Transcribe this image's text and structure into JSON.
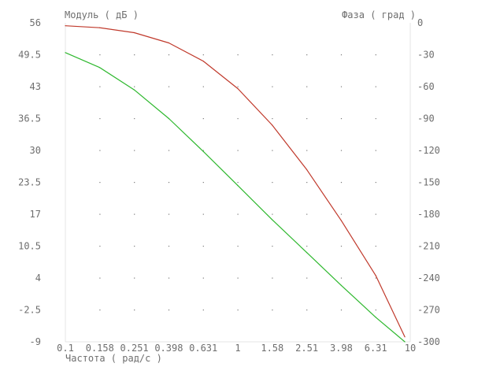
{
  "chart_data": {
    "type": "line",
    "title": "",
    "xlabel": "Частота ( рад/с )",
    "ylabel_left": "Модуль ( дБ )",
    "ylabel_right": "Фаза ( град )",
    "x_scale": "log",
    "xlim": [
      0.1,
      10
    ],
    "ylim_left": [
      -9,
      56
    ],
    "ylim_right": [
      -300,
      0
    ],
    "grid": "dotted",
    "x_ticks": [
      "0.1",
      "0.158",
      "0.251",
      "0.398",
      "0.631",
      "1",
      "1.58",
      "2.51",
      "3.98",
      "6.31",
      "10"
    ],
    "y_ticks_left": [
      "56",
      "49.5",
      "43",
      "36.5",
      "30",
      "23.5",
      "17",
      "10.5",
      "4",
      "-2.5",
      "-9"
    ],
    "y_ticks_right": [
      "0",
      "-30",
      "-60",
      "-90",
      "-120",
      "-150",
      "-180",
      "-210",
      "-240",
      "-270",
      "-300"
    ],
    "series": [
      {
        "axis": "left",
        "color": "#c0392b",
        "x": [
          0.1,
          0.158,
          0.251,
          0.398,
          0.631,
          1,
          1.58,
          2.51,
          3.98,
          6.31,
          9.3
        ],
        "y": [
          55.4,
          55.0,
          54.0,
          51.9,
          48.2,
          42.6,
          35.2,
          26.1,
          15.7,
          4.5,
          -8.0
        ]
      },
      {
        "axis": "right",
        "color": "#2eb82e",
        "x": [
          0.1,
          0.158,
          0.251,
          0.398,
          0.631,
          1,
          1.58,
          2.51,
          3.98,
          6.31,
          9.3
        ],
        "y": [
          -28,
          -42,
          -63,
          -90,
          -121,
          -153,
          -185,
          -216,
          -247,
          -277,
          -300
        ]
      }
    ]
  }
}
